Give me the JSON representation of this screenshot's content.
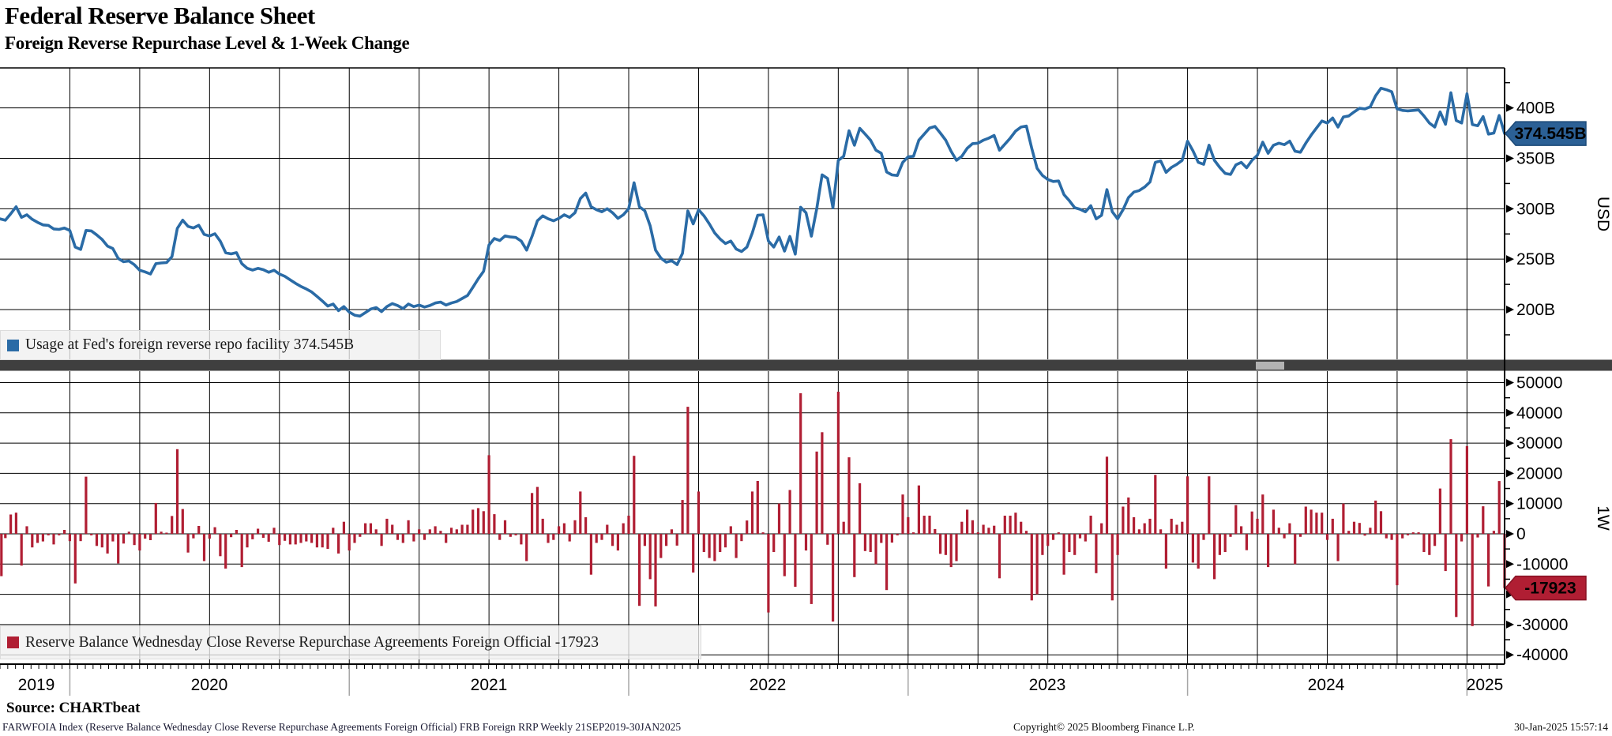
{
  "header": {
    "title": "Federal Reserve Balance Sheet",
    "subtitle": "Foreign Reverse Repurchase Level & 1-Week Change"
  },
  "x_axis": {
    "year_labels": [
      "2019",
      "2020",
      "2021",
      "2022",
      "2023",
      "2024",
      "2025"
    ],
    "range": "Weekly 21SEP2019-30JAN2025"
  },
  "footer": {
    "source": "Source: CHARTbeat",
    "description": "FARWFOIA Index (Reserve Balance Wednesday Close Reverse Repurchase Agreements Foreign Official) FRB Foreign RRP  Weekly 21SEP2019-30JAN2025",
    "copyright": "Copyright© 2025 Bloomberg Finance L.P.",
    "timestamp": "30-Jan-2025 15:57:14"
  },
  "chart_data": [
    {
      "type": "line",
      "name": "Usage at Fed's foreign reverse repo facility",
      "legend_label": "Usage at Fed's foreign reverse repo facility 374.545B",
      "last_value": 374.545,
      "last_value_label": "374.545B",
      "axis_label": "USD",
      "unit": "USD billions",
      "color": "#2a6ba6",
      "badge_color": "#2b6095",
      "y_tick_labels": [
        "400B",
        "350B",
        "300B",
        "250B",
        "200B"
      ],
      "y_tick_values": [
        400,
        350,
        300,
        250,
        200
      ],
      "y_minor_tick_values": [
        425,
        375,
        325,
        275,
        225,
        175
      ],
      "ylim": [
        150,
        440
      ],
      "frequency": "weekly",
      "x_start": "21SEP2019",
      "x_end": "30JAN2025",
      "values": [
        290.0,
        288.6,
        295.0,
        302.0,
        291.5,
        294.0,
        289.5,
        286.5,
        284.0,
        283.5,
        280.0,
        279.5,
        280.8,
        278.4,
        262.0,
        259.6,
        278.5,
        278.0,
        274.0,
        269.5,
        263.0,
        260.5,
        250.7,
        247.5,
        248.2,
        244.5,
        239.0,
        237.4,
        235.3,
        245.5,
        246.2,
        246.6,
        252.5,
        280.5,
        288.7,
        282.5,
        281.0,
        283.6,
        274.6,
        273.0,
        275.2,
        267.8,
        256.3,
        255.2,
        256.5,
        245.5,
        241.0,
        239.2,
        240.9,
        239.6,
        237.0,
        239.0,
        235.3,
        233.0,
        229.5,
        226.0,
        223.0,
        220.5,
        217.5,
        213.0,
        208.5,
        203.5,
        205.5,
        199.0,
        203.0,
        197.5,
        194.5,
        193.5,
        197.0,
        200.5,
        202.0,
        198.0,
        203.0,
        206.0,
        204.0,
        201.0,
        205.5,
        203.0,
        204.5,
        202.5,
        204.0,
        206.5,
        207.5,
        204.5,
        206.5,
        208.0,
        211.0,
        214.0,
        222.0,
        230.5,
        238.0,
        264.0,
        270.5,
        268.5,
        273.0,
        272.0,
        271.5,
        268.0,
        259.0,
        272.5,
        288.0,
        293.0,
        290.0,
        288.0,
        290.5,
        294.0,
        291.5,
        296.0,
        310.0,
        315.5,
        302.0,
        299.0,
        297.0,
        300.0,
        296.0,
        290.5,
        294.0,
        300.0,
        325.8,
        302.0,
        298.0,
        283.0,
        259.0,
        251.0,
        247.0,
        248.5,
        244.6,
        255.8,
        297.8,
        285.0,
        299.0,
        293.0,
        285.0,
        276.0,
        270.0,
        265.5,
        268.0,
        260.0,
        257.6,
        262.0,
        276.0,
        293.5,
        294.0,
        268.0,
        262.0,
        272.0,
        258.0,
        272.5,
        255.0,
        301.5,
        296.0,
        272.8,
        300.0,
        333.6,
        330.0,
        301.0,
        348.0,
        352.0,
        377.3,
        363.0,
        379.7,
        374.0,
        368.0,
        358.0,
        355.0,
        336.4,
        333.5,
        333.0,
        346.0,
        351.5,
        352.0,
        368.0,
        374.0,
        380.0,
        381.6,
        375.0,
        368.0,
        357.0,
        348.0,
        352.0,
        360.0,
        364.5,
        365.0,
        368.0,
        370.0,
        372.7,
        358.0,
        364.0,
        370.0,
        377.0,
        381.0,
        382.0,
        360.0,
        340.0,
        333.0,
        329.0,
        327.0,
        327.5,
        314.0,
        308.0,
        301.0,
        299.5,
        297.0,
        303.0,
        290.0,
        293.5,
        319.0,
        297.0,
        290.0,
        299.0,
        311.0,
        316.5,
        318.0,
        321.5,
        326.5,
        346.0,
        347.5,
        336.0,
        341.0,
        344.0,
        348.0,
        367.0,
        357.5,
        346.0,
        344.0,
        363.0,
        348.0,
        341.0,
        335.0,
        334.0,
        343.5,
        346.0,
        340.6,
        348.0,
        353.0,
        366.0,
        355.0,
        363.0,
        365.0,
        363.5,
        367.0,
        357.0,
        356.0,
        365.0,
        373.0,
        380.0,
        387.0,
        385.0,
        390.0,
        381.0,
        391.0,
        392.0,
        396.0,
        399.6,
        399.0,
        401.0,
        412.0,
        419.5,
        418.0,
        416.0,
        399.0,
        397.5,
        397.0,
        397.5,
        398.0,
        392.0,
        385.0,
        381.0,
        396.0,
        383.7,
        415.0,
        387.5,
        385.0,
        414.0,
        383.5,
        382.3,
        391.4,
        374.0,
        375.0,
        392.468,
        374.545
      ]
    },
    {
      "type": "bar",
      "name": "Reserve Balance Wednesday Close Reverse Repurchase Agreements Foreign Official",
      "legend_label": "Reserve Balance Wednesday Close Reverse Repurchase Agreements Foreign Official -17923",
      "last_value": -17923,
      "last_value_label": "-17923",
      "axis_label": "1W",
      "unit": "USD millions, 1-week change",
      "color": "#b01e33",
      "badge_color": "#b01e33",
      "y_tick_values": [
        50000,
        40000,
        30000,
        20000,
        10000,
        0,
        -10000,
        -20000,
        -30000,
        -40000
      ],
      "ylim": [
        -44000,
        53500
      ],
      "first_bar": -14000,
      "derivation": "bars are 1-week differences of the level series above, in millions (level values x 1000)"
    }
  ]
}
